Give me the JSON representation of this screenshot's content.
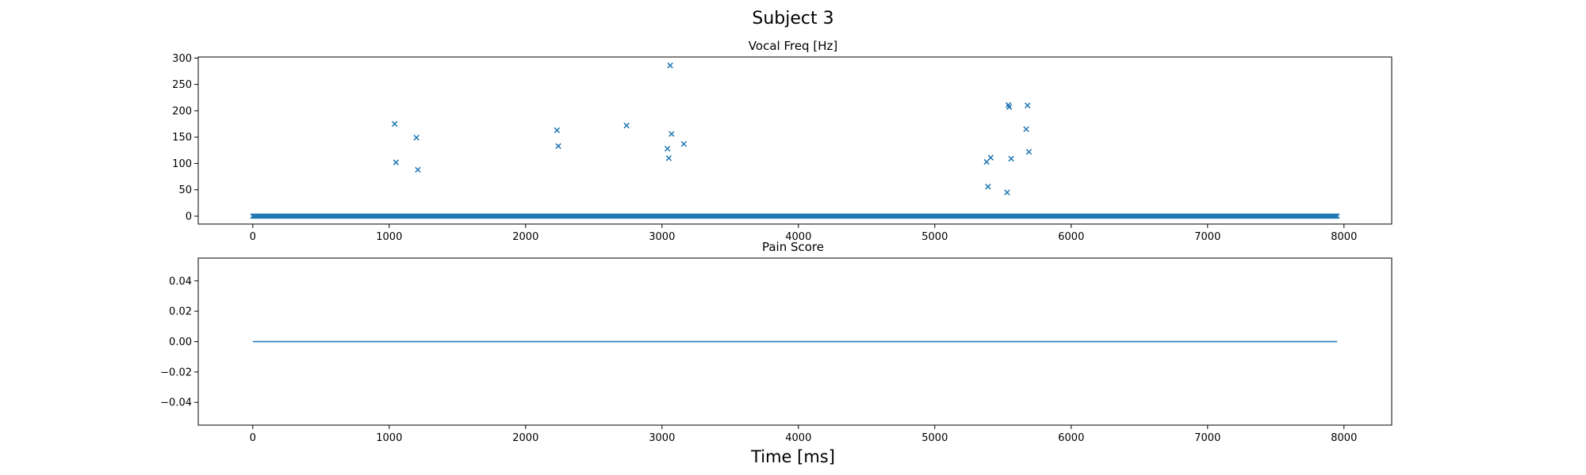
{
  "figure": {
    "suptitle": "Subject 3",
    "xlabel": "Time [ms]"
  },
  "colors": {
    "series": "#1f77b4",
    "axes": "#000000",
    "background": "#ffffff"
  },
  "chart_data": [
    {
      "type": "scatter",
      "title": "Vocal Freq [Hz]",
      "xlabel": "",
      "ylabel": "",
      "marker": "x",
      "xlim": [
        -400,
        8350
      ],
      "ylim": [
        -15,
        302
      ],
      "xticks": [
        0,
        1000,
        2000,
        3000,
        4000,
        5000,
        6000,
        7000,
        8000
      ],
      "yticks": [
        0,
        50,
        100,
        150,
        200,
        250,
        300
      ],
      "grid": false,
      "legend": "none",
      "baseline_series": {
        "description_of_points": "x from 0 to 7950 ms every 10 ms, y = 0",
        "x_start": 0,
        "x_end": 7950,
        "x_step": 10,
        "y": 0
      },
      "points": [
        {
          "x": 1040,
          "y": 175
        },
        {
          "x": 1050,
          "y": 102
        },
        {
          "x": 1200,
          "y": 149
        },
        {
          "x": 1210,
          "y": 88
        },
        {
          "x": 2230,
          "y": 163
        },
        {
          "x": 2240,
          "y": 133
        },
        {
          "x": 2740,
          "y": 172
        },
        {
          "x": 3040,
          "y": 128
        },
        {
          "x": 3050,
          "y": 110
        },
        {
          "x": 3060,
          "y": 286
        },
        {
          "x": 3070,
          "y": 156
        },
        {
          "x": 3160,
          "y": 137
        },
        {
          "x": 5380,
          "y": 103
        },
        {
          "x": 5390,
          "y": 56
        },
        {
          "x": 5410,
          "y": 111
        },
        {
          "x": 5530,
          "y": 45
        },
        {
          "x": 5540,
          "y": 211
        },
        {
          "x": 5545,
          "y": 207
        },
        {
          "x": 5560,
          "y": 109
        },
        {
          "x": 5670,
          "y": 165
        },
        {
          "x": 5680,
          "y": 210
        },
        {
          "x": 5690,
          "y": 122
        }
      ]
    },
    {
      "type": "line",
      "title": "Pain Score",
      "xlabel": "Time [ms]",
      "ylabel": "",
      "x": [
        0,
        7950
      ],
      "series": [
        {
          "values": [
            0.0,
            0.0
          ]
        }
      ],
      "xlim": [
        -400,
        8350
      ],
      "ylim": [
        -0.055,
        0.055
      ],
      "xticks": [
        0,
        1000,
        2000,
        3000,
        4000,
        5000,
        6000,
        7000,
        8000
      ],
      "yticks": [
        -0.04,
        -0.02,
        0.0,
        0.02,
        0.04
      ],
      "ytick_labels": [
        "−0.04",
        "−0.02",
        "0.00",
        "0.02",
        "0.04"
      ],
      "grid": false,
      "legend": "none"
    }
  ]
}
